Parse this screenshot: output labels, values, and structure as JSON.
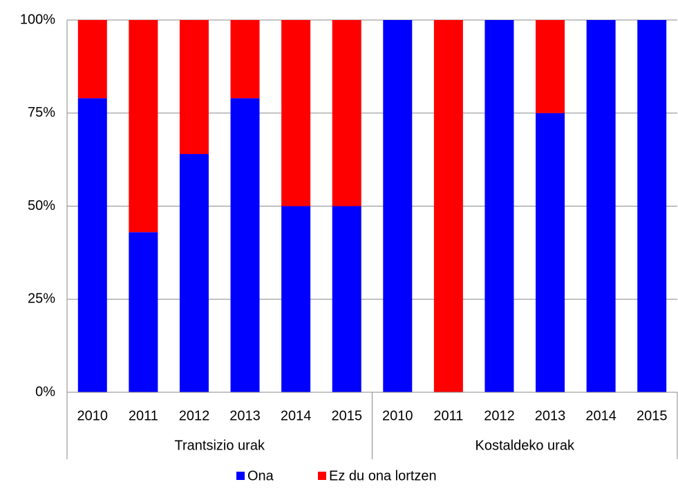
{
  "chart_data": {
    "type": "stacked_bar",
    "groups": [
      {
        "label": "Trantsizio urak",
        "categories": [
          "2010",
          "2011",
          "2012",
          "2013",
          "2014",
          "2015"
        ]
      },
      {
        "label": "Kostaldeko urak",
        "categories": [
          "2010",
          "2011",
          "2012",
          "2013",
          "2014",
          "2015"
        ]
      }
    ],
    "series": [
      {
        "name": "Ona",
        "color": "#0000ff",
        "values": [
          79,
          43,
          64,
          79,
          50,
          50,
          100,
          0,
          100,
          75,
          100,
          100
        ]
      },
      {
        "name": "Ez du ona lortzen",
        "color": "#ff0000",
        "values": [
          21,
          57,
          36,
          21,
          50,
          50,
          0,
          100,
          0,
          25,
          0,
          0
        ]
      }
    ],
    "ylim": [
      0,
      100
    ],
    "yticks": [
      {
        "value": 0,
        "label": "0%"
      },
      {
        "value": 25,
        "label": "25%"
      },
      {
        "value": 50,
        "label": "50%"
      },
      {
        "value": 75,
        "label": "75%"
      },
      {
        "value": 100,
        "label": "100%"
      }
    ],
    "grid": true,
    "legend": "bottom"
  }
}
